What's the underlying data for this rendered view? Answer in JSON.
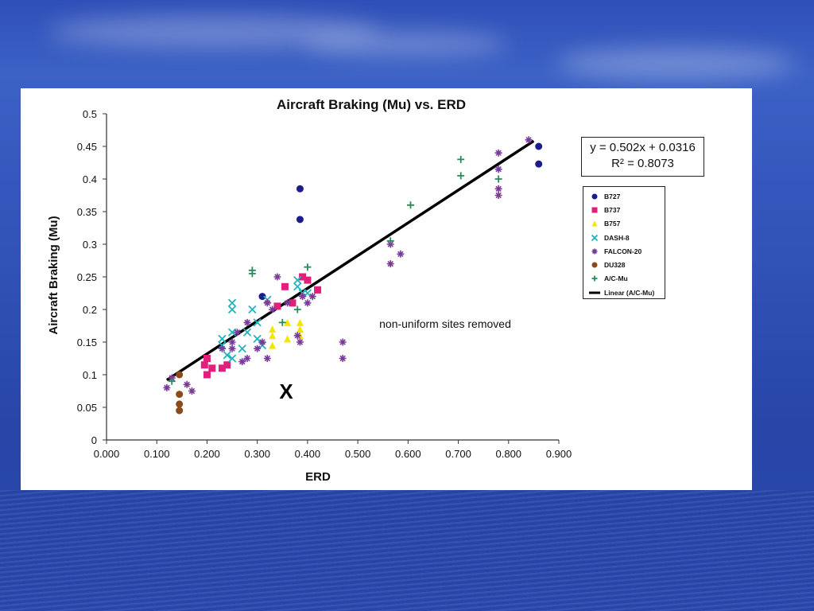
{
  "slide": {
    "background": "#3557bd"
  },
  "chart": {
    "title": "Aircraft Braking (Mu) vs. ERD",
    "xlabel": "ERD",
    "ylabel": "Aircraft Braking (Mu)",
    "annotation": "non-uniform sites removed",
    "x_mark": "X",
    "x_ticks": [
      "0.000",
      "0.100",
      "0.200",
      "0.300",
      "0.400",
      "0.500",
      "0.600",
      "0.700",
      "0.800",
      "0.900"
    ],
    "y_ticks": [
      "0",
      "0.05",
      "0.1",
      "0.15",
      "0.2",
      "0.25",
      "0.3",
      "0.35",
      "0.4",
      "0.45",
      "0.5"
    ],
    "equation": "y = 0.502x + 0.0316",
    "r_squared": "R² = 0.8073"
  },
  "legend": [
    {
      "label": "B727",
      "symbol": "circle",
      "color": "#1c1c8c"
    },
    {
      "label": "B737",
      "symbol": "square",
      "color": "#e0207a"
    },
    {
      "label": "B757",
      "symbol": "triangle",
      "color": "#f2e600"
    },
    {
      "label": "DASH-8",
      "symbol": "x",
      "color": "#20b4c0"
    },
    {
      "label": "FALCON-20",
      "symbol": "star",
      "color": "#7a3a9a"
    },
    {
      "label": "DU328",
      "symbol": "circle",
      "color": "#8a4a1a"
    },
    {
      "label": "A/C-Mu",
      "symbol": "plus",
      "color": "#2a8a5a"
    },
    {
      "label": "Linear (A/C-Mu)",
      "symbol": "line",
      "color": "#000000"
    }
  ],
  "chart_data": {
    "type": "scatter",
    "title": "Aircraft Braking (Mu) vs. ERD",
    "xlabel": "ERD",
    "ylabel": "Aircraft Braking (Mu)",
    "xlim": [
      0,
      0.9
    ],
    "ylim": [
      0,
      0.5
    ],
    "grid": false,
    "legend_position": "right",
    "trendline": {
      "name": "Linear (A/C-Mu)",
      "slope": 0.502,
      "intercept": 0.0316,
      "r2": 0.8073,
      "x_range": [
        0.12,
        0.85
      ]
    },
    "series": [
      {
        "name": "B727",
        "symbol": "circle",
        "color": "#1c1c8c",
        "points": [
          [
            0.385,
            0.385
          ],
          [
            0.385,
            0.338
          ],
          [
            0.31,
            0.22
          ],
          [
            0.86,
            0.45
          ],
          [
            0.86,
            0.423
          ]
        ]
      },
      {
        "name": "B737",
        "symbol": "square",
        "color": "#e0207a",
        "points": [
          [
            0.195,
            0.115
          ],
          [
            0.2,
            0.125
          ],
          [
            0.2,
            0.1
          ],
          [
            0.21,
            0.11
          ],
          [
            0.23,
            0.11
          ],
          [
            0.24,
            0.115
          ],
          [
            0.355,
            0.235
          ],
          [
            0.39,
            0.25
          ],
          [
            0.4,
            0.245
          ],
          [
            0.42,
            0.23
          ],
          [
            0.34,
            0.205
          ],
          [
            0.37,
            0.21
          ]
        ]
      },
      {
        "name": "B757",
        "symbol": "triangle",
        "color": "#f2e600",
        "points": [
          [
            0.33,
            0.145
          ],
          [
            0.33,
            0.16
          ],
          [
            0.33,
            0.17
          ],
          [
            0.36,
            0.155
          ],
          [
            0.36,
            0.18
          ],
          [
            0.385,
            0.18
          ],
          [
            0.385,
            0.17
          ],
          [
            0.385,
            0.16
          ]
        ]
      },
      {
        "name": "DASH-8",
        "symbol": "x",
        "color": "#20b4c0",
        "points": [
          [
            0.25,
            0.21
          ],
          [
            0.25,
            0.2
          ],
          [
            0.23,
            0.155
          ],
          [
            0.23,
            0.145
          ],
          [
            0.25,
            0.165
          ],
          [
            0.25,
            0.125
          ],
          [
            0.24,
            0.13
          ],
          [
            0.29,
            0.2
          ],
          [
            0.3,
            0.18
          ],
          [
            0.3,
            0.155
          ],
          [
            0.31,
            0.145
          ],
          [
            0.32,
            0.215
          ],
          [
            0.38,
            0.245
          ],
          [
            0.38,
            0.235
          ],
          [
            0.39,
            0.225
          ],
          [
            0.4,
            0.225
          ],
          [
            0.28,
            0.165
          ],
          [
            0.27,
            0.14
          ]
        ]
      },
      {
        "name": "FALCON-20",
        "symbol": "star",
        "color": "#7a3a9a",
        "points": [
          [
            0.12,
            0.08
          ],
          [
            0.13,
            0.095
          ],
          [
            0.16,
            0.085
          ],
          [
            0.17,
            0.075
          ],
          [
            0.23,
            0.14
          ],
          [
            0.25,
            0.14
          ],
          [
            0.25,
            0.15
          ],
          [
            0.26,
            0.165
          ],
          [
            0.27,
            0.12
          ],
          [
            0.28,
            0.18
          ],
          [
            0.28,
            0.125
          ],
          [
            0.3,
            0.14
          ],
          [
            0.31,
            0.15
          ],
          [
            0.32,
            0.125
          ],
          [
            0.32,
            0.21
          ],
          [
            0.33,
            0.2
          ],
          [
            0.34,
            0.25
          ],
          [
            0.36,
            0.21
          ],
          [
            0.38,
            0.16
          ],
          [
            0.385,
            0.15
          ],
          [
            0.39,
            0.22
          ],
          [
            0.4,
            0.21
          ],
          [
            0.41,
            0.22
          ],
          [
            0.47,
            0.15
          ],
          [
            0.47,
            0.125
          ],
          [
            0.565,
            0.27
          ],
          [
            0.565,
            0.3
          ],
          [
            0.585,
            0.285
          ],
          [
            0.78,
            0.44
          ],
          [
            0.78,
            0.415
          ],
          [
            0.78,
            0.385
          ],
          [
            0.78,
            0.375
          ],
          [
            0.84,
            0.46
          ]
        ]
      },
      {
        "name": "DU328",
        "symbol": "circle",
        "color": "#8a4a1a",
        "points": [
          [
            0.145,
            0.1
          ],
          [
            0.145,
            0.07
          ],
          [
            0.145,
            0.055
          ],
          [
            0.145,
            0.045
          ]
        ]
      },
      {
        "name": "A/C-Mu",
        "symbol": "plus",
        "color": "#2a8a5a",
        "points": [
          [
            0.13,
            0.09
          ],
          [
            0.29,
            0.26
          ],
          [
            0.29,
            0.255
          ],
          [
            0.35,
            0.18
          ],
          [
            0.38,
            0.2
          ],
          [
            0.4,
            0.265
          ],
          [
            0.565,
            0.305
          ],
          [
            0.605,
            0.36
          ],
          [
            0.705,
            0.43
          ],
          [
            0.705,
            0.405
          ],
          [
            0.78,
            0.4
          ]
        ]
      }
    ]
  }
}
